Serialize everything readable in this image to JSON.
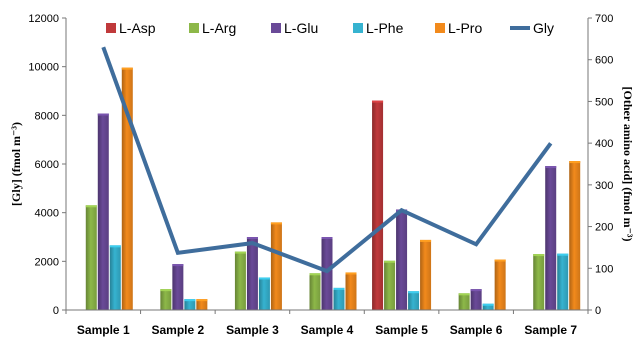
{
  "chart_data": {
    "type": "bar",
    "categories": [
      "Sample 1",
      "Sample 2",
      "Sample 3",
      "Sample 4",
      "Sample 5",
      "Sample 6",
      "Sample 7"
    ],
    "series": [
      {
        "name": "L-Asp",
        "axis": "right",
        "type": "bar",
        "color": "#c0393b",
        "values": [
          0,
          0,
          0,
          0,
          502,
          0,
          0
        ]
      },
      {
        "name": "L-Arg",
        "axis": "right",
        "type": "bar",
        "color": "#8db849",
        "values": [
          251,
          50,
          140,
          88,
          118,
          40,
          134
        ]
      },
      {
        "name": "L-Glu",
        "axis": "right",
        "type": "bar",
        "color": "#6a4a98",
        "values": [
          471,
          110,
          175,
          175,
          241,
          50,
          345
        ]
      },
      {
        "name": "L-Phe",
        "axis": "right",
        "type": "bar",
        "color": "#36b3d0",
        "values": [
          155,
          26,
          78,
          53,
          45,
          15,
          135
        ]
      },
      {
        "name": "L-Pro",
        "axis": "right",
        "type": "bar",
        "color": "#f28a1c",
        "values": [
          581,
          26,
          210,
          90,
          168,
          121,
          357
        ]
      },
      {
        "name": "Gly",
        "axis": "left",
        "type": "line",
        "color": "#3f6d9c",
        "values": [
          10800,
          2350,
          2750,
          1600,
          4100,
          2700,
          6850
        ]
      }
    ],
    "ylabel": "[Gly] (fmol m⁻³)",
    "y2label": "[Other amino acid] (fmol m⁻³)",
    "ylim": [
      0,
      12000
    ],
    "y2lim": [
      0,
      700
    ],
    "yticks": [
      "0",
      "2000",
      "4000",
      "6000",
      "8000",
      "10000",
      "12000"
    ],
    "y2ticks": [
      "0",
      "100",
      "200",
      "300",
      "400",
      "500",
      "600",
      "700"
    ],
    "legend": "top",
    "grid": false
  }
}
